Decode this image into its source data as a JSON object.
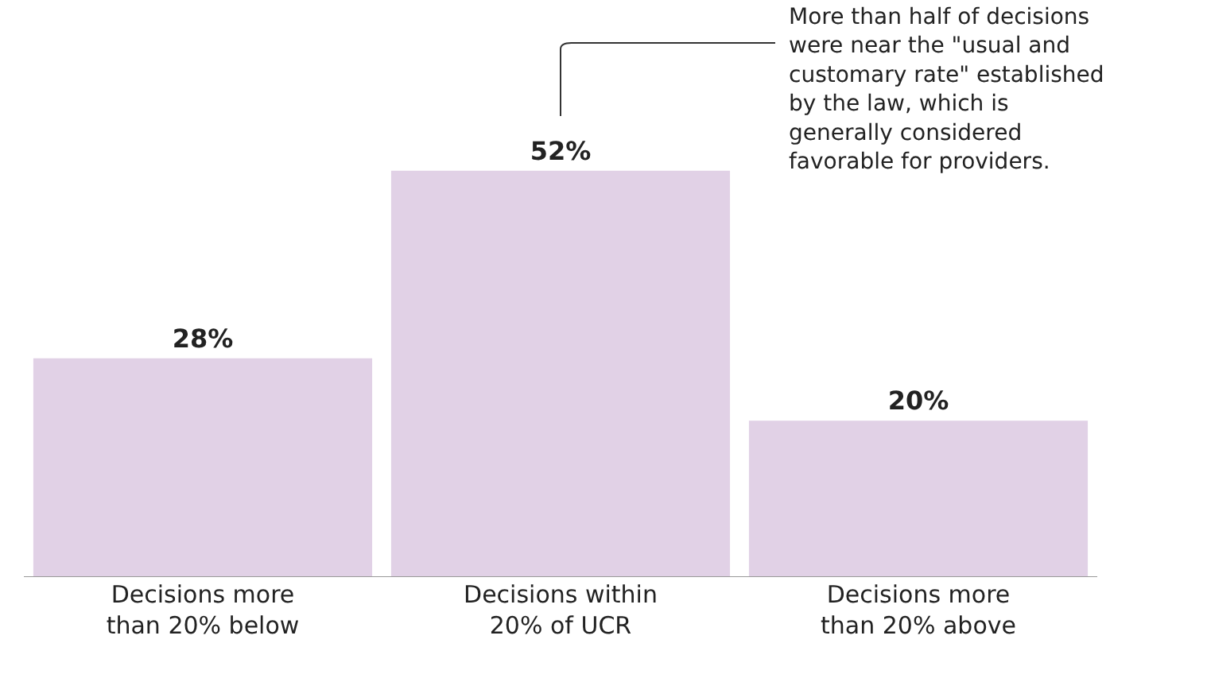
{
  "chart_data": {
    "type": "bar",
    "categories": [
      "Decisions more than 20% below",
      "Decisions within 20% of UCR",
      "Decisions more than 20% above"
    ],
    "values": [
      28,
      52,
      20
    ],
    "value_labels": [
      "28%",
      "52%",
      "20%"
    ],
    "color": "#e1d1e6",
    "annotations": [
      "More than half of decisions were near the \"usual and customary rate\" established by the law, which is generally considered favorable for providers."
    ]
  }
}
